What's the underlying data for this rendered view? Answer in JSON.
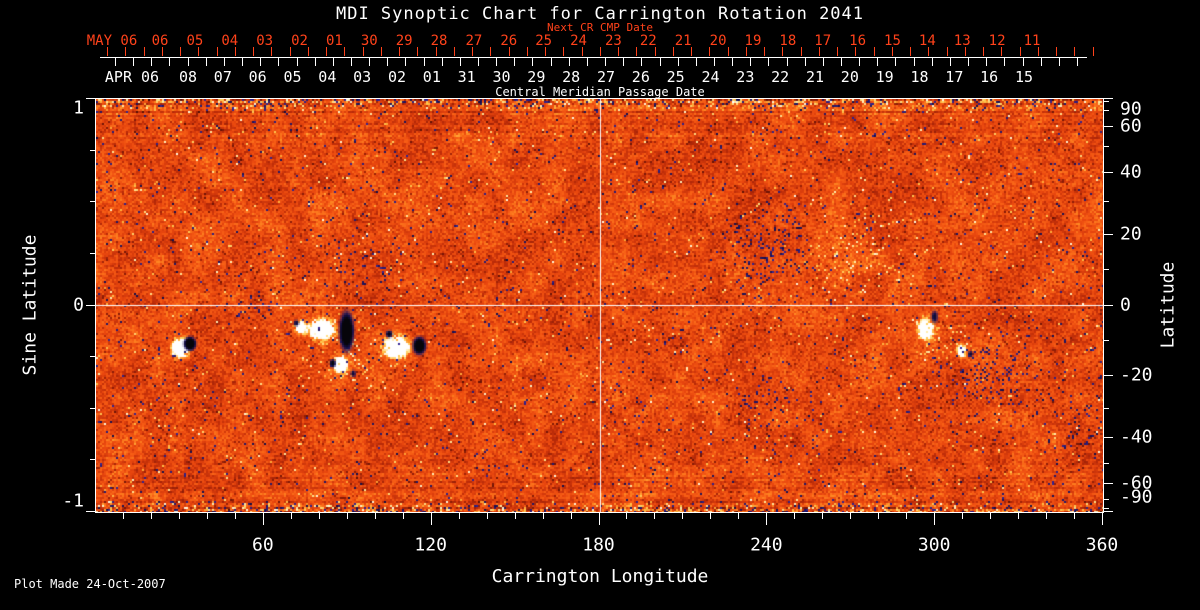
{
  "title": "MDI Synoptic Chart for Carrington Rotation 2041",
  "footer": {
    "plot_made": "Plot Made 24-Oct-2007"
  },
  "colors": {
    "background": "#000000",
    "text": "#ffffff",
    "next_cr_axis": "#ff421a"
  },
  "chart_data": {
    "type": "heatmap",
    "title": "MDI Synoptic Chart for Carrington Rotation 2041",
    "xlabel": "Carrington Longitude",
    "ylabel_left": "Sine Latitude",
    "ylabel_right": "Latitude",
    "xlim": [
      0,
      360
    ],
    "ylim_sine": [
      -1,
      1
    ],
    "grid": "crosshair only",
    "legend": "none",
    "description": "Solar magnetogram synoptic map: quiet-sun orange-red noise with white (positive) and black (negative) magnetic active regions; noisy multicolor bands at the poles.",
    "crosshair": {
      "longitude": 180,
      "sine_latitude": 0
    },
    "noise_seed": 20411,
    "palette": {
      "quiet_sun": "#e8460e",
      "bright": "#ff8c24",
      "faculae": "#ffc850",
      "positive_field": "#ffffff",
      "negative_field": "#06050a",
      "negative_speckle": "#1c1670",
      "frame": "#ffffff"
    },
    "axes": {
      "top_next_cr": {
        "label": "Next CR CMP Date",
        "month": "MAY 06",
        "day_labels": [
          "06",
          "05",
          "04",
          "03",
          "02",
          "01",
          "30",
          "29",
          "28",
          "27",
          "26",
          "25",
          "24",
          "23",
          "22",
          "21",
          "20",
          "19",
          "18",
          "17",
          "16",
          "15",
          "14",
          "13",
          "12",
          "11"
        ]
      },
      "top_cmp": {
        "label": "Central Meridian Passage Date",
        "month": "APR 06",
        "day_labels": [
          "08",
          "07",
          "06",
          "05",
          "04",
          "03",
          "02",
          "01",
          "31",
          "30",
          "29",
          "28",
          "27",
          "26",
          "25",
          "24",
          "23",
          "22",
          "21",
          "20",
          "19",
          "18",
          "17",
          "16",
          "15"
        ]
      },
      "bottom": {
        "label": "Carrington Longitude",
        "range": [
          0,
          360
        ],
        "major_ticks": [
          60,
          120,
          180,
          240,
          300,
          360
        ],
        "minor_step": 10
      },
      "left": {
        "label": "Sine Latitude",
        "major_ticks": [
          1,
          0,
          -1
        ],
        "minor_step": 0.25,
        "range": [
          -1,
          1
        ]
      },
      "right": {
        "label": "Latitude",
        "major_ticks": [
          90,
          60,
          40,
          20,
          0,
          -20,
          -40,
          -60,
          -90
        ],
        "minor_ticks": [
          80,
          70,
          50,
          30,
          10,
          -10,
          -30,
          -50,
          -70,
          -80
        ]
      }
    },
    "active_regions": [
      {
        "id": "AR-1-pos",
        "lon": 30.3,
        "sine_lat": -0.205,
        "rlon": 2.8,
        "rsine": 0.04,
        "polarity": "positive",
        "intensity": 1.0,
        "type": "spot"
      },
      {
        "id": "AR-1-neg",
        "lon": 33.6,
        "sine_lat": -0.185,
        "rlon": 2.2,
        "rsine": 0.034,
        "polarity": "negative",
        "intensity": 1.0,
        "type": "spot"
      },
      {
        "id": "AR-2-pos",
        "lon": 73.2,
        "sine_lat": -0.105,
        "rlon": 1.8,
        "rsine": 0.026,
        "polarity": "positive",
        "intensity": 0.85,
        "type": "spot"
      },
      {
        "id": "AR-2-neg",
        "lon": 71.6,
        "sine_lat": -0.085,
        "rlon": 1.3,
        "rsine": 0.02,
        "polarity": "negative",
        "intensity": 0.55,
        "type": "spot"
      },
      {
        "id": "AR-3-pos",
        "lon": 80.8,
        "sine_lat": -0.115,
        "rlon": 3.8,
        "rsine": 0.042,
        "polarity": "positive",
        "intensity": 1.0,
        "type": "spot"
      },
      {
        "id": "AR-3-neg",
        "lon": 89.6,
        "sine_lat": -0.125,
        "rlon": 2.6,
        "rsine": 0.095,
        "polarity": "negative",
        "intensity": 1.0,
        "type": "spot"
      },
      {
        "id": "AR-3b-pos",
        "lon": 87.4,
        "sine_lat": -0.285,
        "rlon": 2.2,
        "rsine": 0.034,
        "polarity": "positive",
        "intensity": 0.9,
        "type": "spot"
      },
      {
        "id": "AR-3b-neg",
        "lon": 84.6,
        "sine_lat": -0.28,
        "rlon": 1.3,
        "rsine": 0.024,
        "polarity": "negative",
        "intensity": 0.7,
        "type": "spot"
      },
      {
        "id": "AR-3c-neg",
        "lon": 92.0,
        "sine_lat": -0.33,
        "rlon": 1.2,
        "rsine": 0.022,
        "polarity": "negative",
        "intensity": 0.55,
        "type": "spot"
      },
      {
        "id": "AR-4-pos",
        "lon": 107.6,
        "sine_lat": -0.205,
        "rlon": 3.6,
        "rsine": 0.046,
        "polarity": "positive",
        "intensity": 1.0,
        "type": "spot"
      },
      {
        "id": "AR-4-neg",
        "lon": 115.6,
        "sine_lat": -0.195,
        "rlon": 2.4,
        "rsine": 0.044,
        "polarity": "negative",
        "intensity": 0.95,
        "type": "spot"
      },
      {
        "id": "AR-4b-neg",
        "lon": 104.8,
        "sine_lat": -0.138,
        "rlon": 1.5,
        "rsine": 0.022,
        "polarity": "negative",
        "intensity": 0.65,
        "type": "spot"
      },
      {
        "id": "AR-5-pos",
        "lon": 296.6,
        "sine_lat": -0.115,
        "rlon": 2.4,
        "rsine": 0.042,
        "polarity": "positive",
        "intensity": 0.9,
        "type": "spot"
      },
      {
        "id": "AR-5-neg",
        "lon": 299.8,
        "sine_lat": -0.055,
        "rlon": 1.6,
        "rsine": 0.04,
        "polarity": "negative",
        "intensity": 0.55,
        "type": "spot"
      },
      {
        "id": "AR-6-pos",
        "lon": 309.4,
        "sine_lat": -0.22,
        "rlon": 1.6,
        "rsine": 0.026,
        "polarity": "positive",
        "intensity": 0.8,
        "type": "spot"
      },
      {
        "id": "AR-6-neg",
        "lon": 312.6,
        "sine_lat": -0.235,
        "rlon": 1.2,
        "rsine": 0.022,
        "polarity": "negative",
        "intensity": 0.55,
        "type": "spot"
      },
      {
        "id": "PL-1-neg",
        "lon": 239.0,
        "sine_lat": 0.26,
        "rlon": 11.0,
        "rsine": 0.16,
        "polarity": "negative",
        "intensity": 0.55,
        "type": "plage"
      },
      {
        "id": "PL-1-pos",
        "lon": 272.0,
        "sine_lat": 0.245,
        "rlon": 13.0,
        "rsine": 0.18,
        "polarity": "positive",
        "intensity": 0.5,
        "type": "plage"
      },
      {
        "id": "PL-2-neg",
        "lon": 322.0,
        "sine_lat": -0.33,
        "rlon": 15.0,
        "rsine": 0.16,
        "polarity": "negative",
        "intensity": 0.42,
        "type": "plage"
      },
      {
        "id": "PL-3-neg",
        "lon": 241.0,
        "sine_lat": -0.47,
        "rlon": 9.0,
        "rsine": 0.11,
        "polarity": "negative",
        "intensity": 0.32,
        "type": "plage"
      },
      {
        "id": "PL-4-neg",
        "lon": 57.0,
        "sine_lat": 0.01,
        "rlon": 8.0,
        "rsine": 0.09,
        "polarity": "negative",
        "intensity": 0.3,
        "type": "plage"
      },
      {
        "id": "PL-5-pos",
        "lon": 93.0,
        "sine_lat": -0.21,
        "rlon": 12.0,
        "rsine": 0.13,
        "polarity": "positive",
        "intensity": 0.38,
        "type": "plage"
      },
      {
        "id": "PL-6-pos",
        "lon": 299.0,
        "sine_lat": -0.16,
        "rlon": 9.0,
        "rsine": 0.11,
        "polarity": "positive",
        "intensity": 0.32,
        "type": "plage"
      },
      {
        "id": "PL-7-neg",
        "lon": 352.0,
        "sine_lat": -0.55,
        "rlon": 8.0,
        "rsine": 0.14,
        "polarity": "negative",
        "intensity": 0.3,
        "type": "plage"
      },
      {
        "id": "PL-8-neg",
        "lon": 95.0,
        "sine_lat": 0.2,
        "rlon": 12.0,
        "rsine": 0.12,
        "polarity": "negative",
        "intensity": 0.25,
        "type": "plage"
      }
    ]
  }
}
